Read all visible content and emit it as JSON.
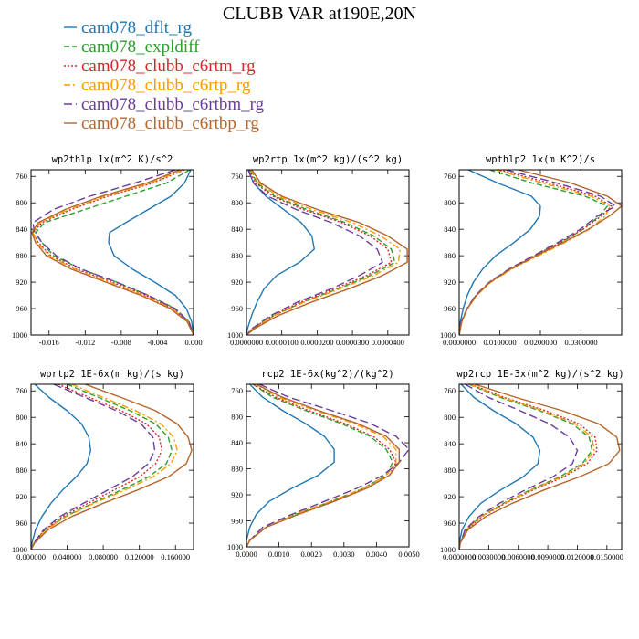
{
  "figure": {
    "title": "CLUBB VAR at190E,20N",
    "legend": [
      {
        "label": "cam078_dflt_rg",
        "color": "#1f77b4",
        "dash": "solid"
      },
      {
        "label": "cam078_expldiff",
        "color": "#2ca02c",
        "dash": "dash"
      },
      {
        "label": "cam078_clubb_c6rtm_rg",
        "color": "#d62728",
        "dash": "dot"
      },
      {
        "label": "cam078_clubb_c6rtp_rg",
        "color": "#ff9900",
        "dash": "dashdot"
      },
      {
        "label": "cam078_clubb_c6rtbm_rg",
        "color": "#6a3d9a",
        "dash": "longdash"
      },
      {
        "label": "cam078_clubb_c6rtbp_rg",
        "color": "#b5652b",
        "dash": "solid"
      }
    ]
  },
  "chart_data": [
    {
      "type": "line",
      "title": "wp2thlp  1x(m^2 K)/s^2",
      "xlim": [
        -0.018,
        0.0
      ],
      "ylim": [
        1000,
        750
      ],
      "y_reversed": true,
      "x_ticks": [
        -0.016,
        -0.012,
        -0.008,
        -0.004,
        0.0
      ],
      "x_tick_labels": [
        "-0.016",
        "-0.012",
        "-0.008",
        "-0.004",
        "0.000"
      ],
      "y_ticks": [
        760,
        800,
        840,
        880,
        920,
        960,
        1000
      ],
      "y": [
        750,
        770,
        790,
        810,
        830,
        845,
        860,
        880,
        900,
        920,
        940,
        960,
        980,
        1000
      ],
      "series": [
        {
          "name": "cam078_dflt_rg",
          "values": [
            -0.0003,
            -0.001,
            -0.0025,
            -0.005,
            -0.0075,
            -0.0093,
            -0.0094,
            -0.0088,
            -0.0068,
            -0.0043,
            -0.002,
            -0.0008,
            -0.0002,
            0.0
          ]
        },
        {
          "name": "cam078_expldiff",
          "values": [
            -0.0004,
            -0.003,
            -0.0075,
            -0.012,
            -0.0165,
            -0.0175,
            -0.0168,
            -0.0155,
            -0.0125,
            -0.0085,
            -0.005,
            -0.002,
            -0.0005,
            0.0
          ]
        },
        {
          "name": "cam078_clubb_c6rtm_rg",
          "values": [
            -0.001,
            -0.0045,
            -0.0095,
            -0.0135,
            -0.0168,
            -0.0178,
            -0.0172,
            -0.0158,
            -0.013,
            -0.009,
            -0.0053,
            -0.0023,
            -0.0006,
            0.0
          ]
        },
        {
          "name": "cam078_clubb_c6rtp_rg",
          "values": [
            -0.0012,
            -0.0048,
            -0.0098,
            -0.0138,
            -0.017,
            -0.0178,
            -0.0173,
            -0.016,
            -0.0132,
            -0.0093,
            -0.0055,
            -0.0024,
            -0.0006,
            0.0
          ]
        },
        {
          "name": "cam078_clubb_c6rtbm_rg",
          "values": [
            -0.002,
            -0.0065,
            -0.0115,
            -0.0155,
            -0.0178,
            -0.0176,
            -0.0168,
            -0.0152,
            -0.0125,
            -0.0085,
            -0.005,
            -0.0021,
            -0.0005,
            0.0
          ]
        },
        {
          "name": "cam078_clubb_c6rtbp_rg",
          "values": [
            -0.0015,
            -0.0052,
            -0.0102,
            -0.0142,
            -0.0172,
            -0.0179,
            -0.0175,
            -0.0163,
            -0.0136,
            -0.0097,
            -0.0058,
            -0.0026,
            -0.0007,
            0.0
          ]
        }
      ]
    },
    {
      "type": "line",
      "title": "wp2rtp  1x(m^2 kg)/(s^2 kg)",
      "xlim": [
        0.0,
        4.6e-05
      ],
      "ylim": [
        1000,
        750
      ],
      "y_reversed": true,
      "x_ticks": [
        0.0,
        1e-05,
        2e-05,
        3e-05,
        4e-05
      ],
      "x_tick_labels": [
        "0.0000000",
        "0.0000100",
        "0.0000200",
        "0.0000300",
        "0.0000400"
      ],
      "y_ticks": [
        760,
        800,
        840,
        880,
        920,
        960,
        1000
      ],
      "y": [
        750,
        770,
        790,
        810,
        830,
        850,
        870,
        890,
        910,
        930,
        950,
        970,
        990,
        1000
      ],
      "series": [
        {
          "name": "cam078_dflt_rg",
          "values": [
            5e-07,
            2e-06,
            5.5e-06,
            1.05e-05,
            1.55e-05,
            1.85e-05,
            1.92e-05,
            1.5e-05,
            8.5e-06,
            5e-06,
            3e-06,
            1.5e-06,
            3e-07,
            0.0
          ]
        },
        {
          "name": "cam078_expldiff",
          "values": [
            1e-06,
            3e-06,
            8e-06,
            1.7e-05,
            2.8e-05,
            3.6e-05,
            4.1e-05,
            4.2e-05,
            3.5e-05,
            2.6e-05,
            1.6e-05,
            8e-06,
            2e-06,
            0.0
          ]
        },
        {
          "name": "cam078_clubb_c6rtm_rg",
          "values": [
            8e-07,
            2.5e-06,
            7.5e-06,
            1.6e-05,
            2.7e-05,
            3.5e-05,
            4e-05,
            4.1e-05,
            3.4e-05,
            2.5e-05,
            1.55e-05,
            7.5e-06,
            1.8e-06,
            0.0
          ]
        },
        {
          "name": "cam078_clubb_c6rtp_rg",
          "values": [
            1.2e-06,
            3.5e-06,
            9e-06,
            1.85e-05,
            3e-05,
            3.8e-05,
            4.35e-05,
            4.3e-05,
            3.6e-05,
            2.65e-05,
            1.65e-05,
            8e-06,
            2e-06,
            0.0
          ]
        },
        {
          "name": "cam078_clubb_c6rtbm_rg",
          "values": [
            5e-07,
            2e-06,
            6e-06,
            1.4e-05,
            2.4e-05,
            3.2e-05,
            3.7e-05,
            3.85e-05,
            3.2e-05,
            2.4e-05,
            1.45e-05,
            7e-06,
            1.6e-06,
            0.0
          ]
        },
        {
          "name": "cam078_clubb_c6rtbp_rg",
          "values": [
            1.5e-06,
            4e-06,
            1e-05,
            2e-05,
            3.2e-05,
            4e-05,
            4.55e-05,
            4.55e-05,
            3.85e-05,
            2.9e-05,
            1.85e-05,
            9.2e-06,
            2.4e-06,
            0.0
          ]
        }
      ]
    },
    {
      "type": "line",
      "title": "wpthlp2  1x(m K^2)/s",
      "xlim": [
        0.0,
        0.04
      ],
      "ylim": [
        1000,
        750
      ],
      "y_reversed": true,
      "x_ticks": [
        0.0,
        0.01,
        0.02,
        0.03
      ],
      "x_tick_labels": [
        "0.0000000",
        "0.0100000",
        "0.0200000",
        "0.0300000"
      ],
      "y_ticks": [
        760,
        800,
        840,
        880,
        920,
        960,
        1000
      ],
      "y": [
        750,
        770,
        790,
        805,
        820,
        840,
        860,
        880,
        900,
        920,
        940,
        960,
        980,
        1000
      ],
      "series": [
        {
          "name": "cam078_dflt_rg",
          "values": [
            0.0022,
            0.0095,
            0.0178,
            0.02,
            0.0198,
            0.0175,
            0.0135,
            0.009,
            0.0058,
            0.0035,
            0.002,
            0.001,
            0.0003,
            0.0
          ]
        },
        {
          "name": "cam078_expldiff",
          "values": [
            0.0075,
            0.018,
            0.031,
            0.0365,
            0.0345,
            0.0305,
            0.025,
            0.0188,
            0.0126,
            0.0076,
            0.0042,
            0.002,
            0.0006,
            0.0
          ]
        },
        {
          "name": "cam078_clubb_c6rtm_rg",
          "values": [
            0.01,
            0.022,
            0.0335,
            0.0375,
            0.035,
            0.0305,
            0.0248,
            0.0186,
            0.0125,
            0.0075,
            0.0041,
            0.002,
            0.0006,
            0.0
          ]
        },
        {
          "name": "cam078_clubb_c6rtp_rg",
          "values": [
            0.009,
            0.0205,
            0.0325,
            0.0372,
            0.036,
            0.032,
            0.026,
            0.0195,
            0.013,
            0.0078,
            0.0043,
            0.0021,
            0.0006,
            0.0
          ]
        },
        {
          "name": "cam078_clubb_c6rtbm_rg",
          "values": [
            0.0115,
            0.024,
            0.0348,
            0.0385,
            0.034,
            0.0298,
            0.0243,
            0.0183,
            0.0123,
            0.0074,
            0.004,
            0.0019,
            0.0005,
            0.0
          ]
        },
        {
          "name": "cam078_clubb_c6rtbp_rg",
          "values": [
            0.0145,
            0.0275,
            0.0365,
            0.04,
            0.037,
            0.0318,
            0.0256,
            0.019,
            0.0127,
            0.0076,
            0.0042,
            0.002,
            0.0006,
            0.0
          ]
        }
      ]
    },
    {
      "type": "line",
      "title": "wprtp2  1E-6x(m kg)/(s kg)",
      "xlim": [
        0.0,
        0.18
      ],
      "ylim": [
        1000,
        750
      ],
      "y_reversed": true,
      "x_ticks": [
        0.0,
        0.04,
        0.08,
        0.12,
        0.16
      ],
      "x_tick_labels": [
        "0.000000",
        "0.040000",
        "0.080000",
        "0.120000",
        "0.160000"
      ],
      "y_ticks": [
        760,
        800,
        840,
        880,
        920,
        960,
        1000
      ],
      "y": [
        750,
        770,
        790,
        810,
        830,
        850,
        870,
        890,
        910,
        930,
        950,
        970,
        990,
        1000
      ],
      "series": [
        {
          "name": "cam078_dflt_rg",
          "values": [
            0.004,
            0.02,
            0.04,
            0.056,
            0.064,
            0.066,
            0.062,
            0.05,
            0.035,
            0.022,
            0.012,
            0.005,
            0.001,
            0.0
          ]
        },
        {
          "name": "cam078_expldiff",
          "values": [
            0.04,
            0.075,
            0.11,
            0.138,
            0.152,
            0.156,
            0.15,
            0.13,
            0.1,
            0.068,
            0.038,
            0.016,
            0.003,
            0.0
          ]
        },
        {
          "name": "cam078_clubb_c6rtm_rg",
          "values": [
            0.03,
            0.065,
            0.1,
            0.128,
            0.142,
            0.145,
            0.138,
            0.12,
            0.092,
            0.063,
            0.035,
            0.015,
            0.003,
            0.0
          ]
        },
        {
          "name": "cam078_clubb_c6rtp_rg",
          "values": [
            0.045,
            0.08,
            0.116,
            0.144,
            0.158,
            0.162,
            0.155,
            0.135,
            0.104,
            0.07,
            0.039,
            0.017,
            0.003,
            0.0
          ]
        },
        {
          "name": "cam078_clubb_c6rtbm_rg",
          "values": [
            0.025,
            0.06,
            0.095,
            0.122,
            0.135,
            0.137,
            0.13,
            0.112,
            0.085,
            0.058,
            0.032,
            0.014,
            0.003,
            0.0
          ]
        },
        {
          "name": "cam078_clubb_c6rtbp_rg",
          "values": [
            0.06,
            0.1,
            0.138,
            0.162,
            0.174,
            0.178,
            0.172,
            0.152,
            0.118,
            0.08,
            0.045,
            0.019,
            0.004,
            0.0
          ]
        }
      ]
    },
    {
      "type": "line",
      "title": "rcp2  1E-6x(kg^2)/(kg^2)",
      "xlim": [
        0.0,
        0.005
      ],
      "ylim": [
        1000,
        750
      ],
      "y_reversed": true,
      "x_ticks": [
        0.0,
        0.001,
        0.002,
        0.003,
        0.004,
        0.005
      ],
      "x_tick_labels": [
        "0.0000",
        "0.0010",
        "0.0020",
        "0.0030",
        "0.0040",
        "0.0050"
      ],
      "y_ticks": [
        760,
        800,
        840,
        880,
        920,
        960,
        1000
      ],
      "y": [
        750,
        770,
        790,
        810,
        830,
        850,
        870,
        890,
        910,
        930,
        950,
        970,
        990,
        1000
      ],
      "series": [
        {
          "name": "cam078_dflt_rg",
          "values": [
            0.0001,
            0.0005,
            0.0011,
            0.0018,
            0.0024,
            0.0027,
            0.0027,
            0.0022,
            0.0014,
            0.0007,
            0.0003,
            0.0001,
            0.0,
            0.0
          ]
        },
        {
          "name": "cam078_expldiff",
          "values": [
            0.0002,
            0.0008,
            0.0018,
            0.0029,
            0.0038,
            0.0043,
            0.0045,
            0.0043,
            0.0036,
            0.0026,
            0.0015,
            0.0006,
            0.0001,
            0.0
          ]
        },
        {
          "name": "cam078_clubb_c6rtm_rg",
          "values": [
            0.0002,
            0.0009,
            0.0019,
            0.003,
            0.0039,
            0.0044,
            0.0046,
            0.0044,
            0.0037,
            0.0027,
            0.0016,
            0.0006,
            0.0001,
            0.0
          ]
        },
        {
          "name": "cam078_clubb_c6rtp_rg",
          "values": [
            0.0003,
            0.001,
            0.0021,
            0.0033,
            0.0042,
            0.0046,
            0.0046,
            0.0043,
            0.0036,
            0.0026,
            0.0015,
            0.0006,
            0.0001,
            0.0
          ]
        },
        {
          "name": "cam078_clubb_c6rtbm_rg",
          "values": [
            0.0004,
            0.0013,
            0.0026,
            0.0038,
            0.0046,
            0.005,
            0.0047,
            0.0042,
            0.0034,
            0.0024,
            0.0014,
            0.0005,
            0.0001,
            0.0
          ]
        },
        {
          "name": "cam078_clubb_c6rtbp_rg",
          "values": [
            0.0003,
            0.0011,
            0.0022,
            0.0034,
            0.0043,
            0.0047,
            0.0047,
            0.0044,
            0.0037,
            0.0027,
            0.0016,
            0.0006,
            0.0001,
            0.0
          ]
        }
      ]
    },
    {
      "type": "line",
      "title": "wp2rcp  1E-3x(m^2 kg)/(s^2 kg)",
      "xlim": [
        0.0,
        0.0165
      ],
      "ylim": [
        1000,
        750
      ],
      "y_reversed": true,
      "x_ticks": [
        0.0,
        0.003,
        0.006,
        0.009,
        0.012,
        0.015
      ],
      "x_tick_labels": [
        "0.0000000",
        "0.0030000",
        "0.0060000",
        "0.0090000",
        "0.0120000",
        "0.0150000"
      ],
      "y_ticks": [
        760,
        800,
        840,
        880,
        920,
        960,
        1000
      ],
      "y": [
        750,
        770,
        790,
        810,
        830,
        850,
        870,
        890,
        910,
        930,
        950,
        970,
        990,
        1000
      ],
      "series": [
        {
          "name": "cam078_dflt_rg",
          "values": [
            0.0002,
            0.0015,
            0.0035,
            0.0058,
            0.0075,
            0.0082,
            0.008,
            0.0065,
            0.0042,
            0.0022,
            0.001,
            0.0003,
            0.0,
            0.0
          ]
        },
        {
          "name": "cam078_expldiff",
          "values": [
            0.001,
            0.0042,
            0.0082,
            0.0115,
            0.0132,
            0.0135,
            0.0125,
            0.0102,
            0.0072,
            0.0045,
            0.0022,
            0.0007,
            0.0001,
            0.0
          ]
        },
        {
          "name": "cam078_clubb_c6rtm_rg",
          "values": [
            0.0012,
            0.0046,
            0.0088,
            0.0122,
            0.0138,
            0.014,
            0.013,
            0.0106,
            0.0075,
            0.0047,
            0.0023,
            0.0008,
            0.0001,
            0.0
          ]
        },
        {
          "name": "cam078_clubb_c6rtp_rg",
          "values": [
            0.0011,
            0.0044,
            0.0085,
            0.0118,
            0.0135,
            0.0137,
            0.0127,
            0.0104,
            0.0073,
            0.0046,
            0.0022,
            0.0007,
            0.0001,
            0.0
          ]
        },
        {
          "name": "cam078_clubb_c6rtbm_rg",
          "values": [
            0.0006,
            0.003,
            0.0062,
            0.0092,
            0.0112,
            0.012,
            0.0115,
            0.0095,
            0.0067,
            0.0041,
            0.002,
            0.0006,
            0.0001,
            0.0
          ]
        },
        {
          "name": "cam078_clubb_c6rtbp_rg",
          "values": [
            0.0016,
            0.0058,
            0.0105,
            0.0142,
            0.016,
            0.0163,
            0.0152,
            0.0122,
            0.0086,
            0.0054,
            0.0027,
            0.0009,
            0.0001,
            0.0
          ]
        }
      ]
    }
  ]
}
